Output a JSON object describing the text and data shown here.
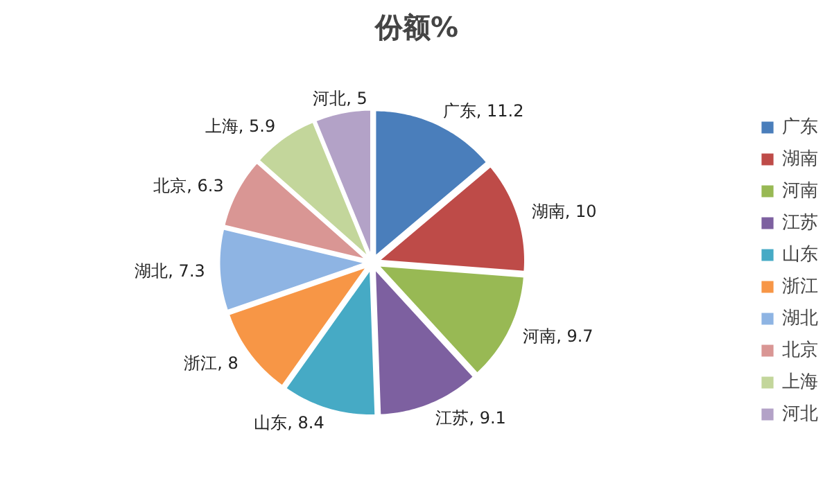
{
  "chart_data": {
    "type": "pie",
    "title": "份额%",
    "categories": [
      "广东",
      "湖南",
      "河南",
      "江苏",
      "山东",
      "浙江",
      "湖北",
      "北京",
      "上海",
      "河北"
    ],
    "values": [
      11.2,
      10,
      9.7,
      9.1,
      8.4,
      8,
      7.3,
      6.3,
      5.9,
      5
    ],
    "colors": [
      "#4a7ebb",
      "#be4b48",
      "#98b954",
      "#7d60a0",
      "#46aac5",
      "#f79646",
      "#8eb4e3",
      "#d99694",
      "#c3d69b",
      "#b3a2c7"
    ],
    "value_labels": [
      "广东, 11.2",
      "湖南, 10",
      "河南, 9.7",
      "江苏, 9.1",
      "山东, 8.4",
      "浙江, 8",
      "湖北, 7.3",
      "北京, 6.3",
      "上海, 5.9",
      "河北, 5"
    ],
    "legend": "right"
  }
}
